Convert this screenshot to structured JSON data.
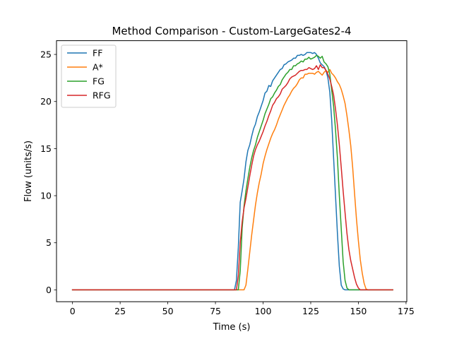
{
  "chart_data": {
    "type": "line",
    "title": "Method Comparison - Custom-LargeGates2-4",
    "xlabel": "Time (s)",
    "ylabel": "Flow (units/s)",
    "xlim": [
      -8.4,
      175.4
    ],
    "ylim": [
      -1.26,
      26.46
    ],
    "xticks": [
      0,
      25,
      50,
      75,
      100,
      125,
      150,
      175
    ],
    "yticks": [
      0,
      5,
      10,
      15,
      20,
      25
    ],
    "grid": false,
    "legend_position": "top-left",
    "series": [
      {
        "name": "FF",
        "color": "#1f77b4",
        "points": [
          [
            0,
            0
          ],
          [
            85,
            0
          ],
          [
            86,
            1
          ],
          [
            87,
            4.5
          ],
          [
            88,
            9.3
          ],
          [
            89,
            10.5
          ],
          [
            90,
            11.8
          ],
          [
            91,
            13.6
          ],
          [
            92,
            14.8
          ],
          [
            93,
            15.4
          ],
          [
            94,
            16.3
          ],
          [
            95,
            17.1
          ],
          [
            96,
            17.6
          ],
          [
            97,
            18.4
          ],
          [
            98,
            18.9
          ],
          [
            99,
            19.5
          ],
          [
            100,
            20.1
          ],
          [
            101,
            20.9
          ],
          [
            102,
            21.1
          ],
          [
            103,
            21.7
          ],
          [
            104,
            21.6
          ],
          [
            105,
            22.2
          ],
          [
            106,
            22.5
          ],
          [
            107,
            22.8
          ],
          [
            108,
            23.1
          ],
          [
            109,
            23.4
          ],
          [
            110,
            23.5
          ],
          [
            111,
            23.9
          ],
          [
            112,
            24.0
          ],
          [
            113,
            24.2
          ],
          [
            114,
            24.3
          ],
          [
            115,
            24.4
          ],
          [
            116,
            24.6
          ],
          [
            117,
            24.6
          ],
          [
            118,
            24.9
          ],
          [
            119,
            24.9
          ],
          [
            120,
            25.0
          ],
          [
            121,
            24.9
          ],
          [
            122,
            25.0
          ],
          [
            123,
            25.2
          ],
          [
            124,
            25.2
          ],
          [
            125,
            25.2
          ],
          [
            126,
            25.1
          ],
          [
            127,
            25.2
          ],
          [
            128,
            25.0
          ],
          [
            129,
            24.6
          ],
          [
            130,
            24.1
          ],
          [
            131,
            23.9
          ],
          [
            132,
            23.7
          ],
          [
            133,
            23.3
          ],
          [
            134,
            22.5
          ],
          [
            135,
            21.0
          ],
          [
            136,
            18.0
          ],
          [
            137,
            14.0
          ],
          [
            138,
            10.0
          ],
          [
            139,
            6.0
          ],
          [
            140,
            2.5
          ],
          [
            141,
            0.5
          ],
          [
            142,
            0.1
          ],
          [
            143,
            0
          ],
          [
            168,
            0
          ]
        ]
      },
      {
        "name": "A*",
        "color": "#ff7f0e",
        "points": [
          [
            0,
            0
          ],
          [
            90,
            0
          ],
          [
            91,
            0.5
          ],
          [
            92,
            2.2
          ],
          [
            93,
            4.0
          ],
          [
            94,
            5.8
          ],
          [
            95,
            7.4
          ],
          [
            96,
            9.0
          ],
          [
            97,
            10.3
          ],
          [
            98,
            11.4
          ],
          [
            99,
            12.3
          ],
          [
            100,
            13.4
          ],
          [
            101,
            14.2
          ],
          [
            102,
            14.9
          ],
          [
            103,
            15.5
          ],
          [
            104,
            16.1
          ],
          [
            105,
            16.6
          ],
          [
            106,
            17.0
          ],
          [
            107,
            17.5
          ],
          [
            108,
            18.1
          ],
          [
            109,
            18.6
          ],
          [
            110,
            19.1
          ],
          [
            111,
            19.6
          ],
          [
            112,
            20.0
          ],
          [
            113,
            20.4
          ],
          [
            114,
            20.7
          ],
          [
            115,
            21.1
          ],
          [
            116,
            21.4
          ],
          [
            117,
            21.6
          ],
          [
            118,
            21.9
          ],
          [
            119,
            22.3
          ],
          [
            120,
            22.5
          ],
          [
            121,
            22.5
          ],
          [
            122,
            22.9
          ],
          [
            123,
            22.9
          ],
          [
            124,
            23.0
          ],
          [
            125,
            23.0
          ],
          [
            126,
            23.0
          ],
          [
            127,
            22.9
          ],
          [
            128,
            23.1
          ],
          [
            129,
            23.2
          ],
          [
            130,
            23.0
          ],
          [
            131,
            22.8
          ],
          [
            132,
            23.1
          ],
          [
            133,
            23.3
          ],
          [
            134,
            23.1
          ],
          [
            135,
            23.4
          ],
          [
            136,
            23.0
          ],
          [
            137,
            22.8
          ],
          [
            138,
            22.5
          ],
          [
            139,
            22.1
          ],
          [
            140,
            21.8
          ],
          [
            141,
            21.3
          ],
          [
            142,
            20.6
          ],
          [
            143,
            19.8
          ],
          [
            144,
            18.5
          ],
          [
            145,
            17.0
          ],
          [
            146,
            15.3
          ],
          [
            147,
            13.0
          ],
          [
            148,
            10.2
          ],
          [
            149,
            7.5
          ],
          [
            150,
            5.2
          ],
          [
            151,
            3.2
          ],
          [
            152,
            1.8
          ],
          [
            153,
            0.7
          ],
          [
            154,
            0.1
          ],
          [
            155,
            0
          ],
          [
            168,
            0
          ]
        ]
      },
      {
        "name": "FG",
        "color": "#2ca02c",
        "points": [
          [
            0,
            0
          ],
          [
            87,
            0
          ],
          [
            88,
            2.0
          ],
          [
            89,
            6.5
          ],
          [
            90,
            8.9
          ],
          [
            91,
            10.5
          ],
          [
            92,
            11.8
          ],
          [
            93,
            13.0
          ],
          [
            94,
            14.0
          ],
          [
            95,
            14.8
          ],
          [
            96,
            15.4
          ],
          [
            97,
            16.2
          ],
          [
            98,
            16.8
          ],
          [
            99,
            17.4
          ],
          [
            100,
            18.0
          ],
          [
            101,
            18.7
          ],
          [
            102,
            19.2
          ],
          [
            103,
            19.7
          ],
          [
            104,
            20.3
          ],
          [
            105,
            20.5
          ],
          [
            106,
            20.9
          ],
          [
            107,
            21.2
          ],
          [
            108,
            21.6
          ],
          [
            109,
            21.8
          ],
          [
            110,
            22.3
          ],
          [
            111,
            22.6
          ],
          [
            112,
            22.9
          ],
          [
            113,
            23.1
          ],
          [
            114,
            23.4
          ],
          [
            115,
            23.4
          ],
          [
            116,
            23.8
          ],
          [
            117,
            23.8
          ],
          [
            118,
            24.0
          ],
          [
            119,
            24.1
          ],
          [
            120,
            24.3
          ],
          [
            121,
            24.2
          ],
          [
            122,
            24.5
          ],
          [
            123,
            24.5
          ],
          [
            124,
            24.7
          ],
          [
            125,
            24.5
          ],
          [
            126,
            24.6
          ],
          [
            127,
            24.7
          ],
          [
            128,
            24.9
          ],
          [
            129,
            24.8
          ],
          [
            130,
            24.6
          ],
          [
            131,
            24.8
          ],
          [
            132,
            24.2
          ],
          [
            133,
            24.0
          ],
          [
            134,
            23.7
          ],
          [
            135,
            22.9
          ],
          [
            136,
            21.2
          ],
          [
            137,
            19.5
          ],
          [
            138,
            17.0
          ],
          [
            139,
            14.0
          ],
          [
            140,
            10.0
          ],
          [
            141,
            6.5
          ],
          [
            142,
            3.0
          ],
          [
            143,
            1.0
          ],
          [
            144,
            0.2
          ],
          [
            145,
            0
          ],
          [
            168,
            0
          ]
        ]
      },
      {
        "name": "RFG",
        "color": "#d62728",
        "points": [
          [
            0,
            0
          ],
          [
            86,
            0
          ],
          [
            87,
            1.5
          ],
          [
            88,
            5.0
          ],
          [
            89,
            7.2
          ],
          [
            90,
            8.7
          ],
          [
            91,
            9.7
          ],
          [
            92,
            10.9
          ],
          [
            93,
            12.1
          ],
          [
            94,
            13.2
          ],
          [
            95,
            14.2
          ],
          [
            96,
            14.9
          ],
          [
            97,
            15.4
          ],
          [
            98,
            15.8
          ],
          [
            99,
            16.3
          ],
          [
            100,
            16.8
          ],
          [
            101,
            17.4
          ],
          [
            102,
            17.9
          ],
          [
            103,
            18.5
          ],
          [
            104,
            19.0
          ],
          [
            105,
            19.6
          ],
          [
            106,
            19.9
          ],
          [
            107,
            20.3
          ],
          [
            108,
            20.5
          ],
          [
            109,
            20.8
          ],
          [
            110,
            21.3
          ],
          [
            111,
            21.5
          ],
          [
            112,
            21.7
          ],
          [
            113,
            22.0
          ],
          [
            114,
            22.4
          ],
          [
            115,
            22.6
          ],
          [
            116,
            22.7
          ],
          [
            117,
            22.8
          ],
          [
            118,
            23.0
          ],
          [
            119,
            23.2
          ],
          [
            120,
            23.3
          ],
          [
            121,
            23.3
          ],
          [
            122,
            23.4
          ],
          [
            123,
            23.4
          ],
          [
            124,
            23.6
          ],
          [
            125,
            23.5
          ],
          [
            126,
            23.4
          ],
          [
            127,
            23.5
          ],
          [
            128,
            23.8
          ],
          [
            129,
            23.4
          ],
          [
            130,
            23.9
          ],
          [
            131,
            23.6
          ],
          [
            132,
            23.6
          ],
          [
            133,
            23.3
          ],
          [
            134,
            22.9
          ],
          [
            135,
            22.4
          ],
          [
            136,
            21.6
          ],
          [
            137,
            20.7
          ],
          [
            138,
            19.2
          ],
          [
            139,
            17.5
          ],
          [
            140,
            15.4
          ],
          [
            141,
            13.0
          ],
          [
            142,
            10.5
          ],
          [
            143,
            8.2
          ],
          [
            144,
            6.0
          ],
          [
            145,
            4.3
          ],
          [
            146,
            3.1
          ],
          [
            147,
            2.2
          ],
          [
            148,
            1.3
          ],
          [
            149,
            0.6
          ],
          [
            150,
            0.2
          ],
          [
            151,
            0
          ],
          [
            168,
            0
          ]
        ]
      }
    ]
  }
}
